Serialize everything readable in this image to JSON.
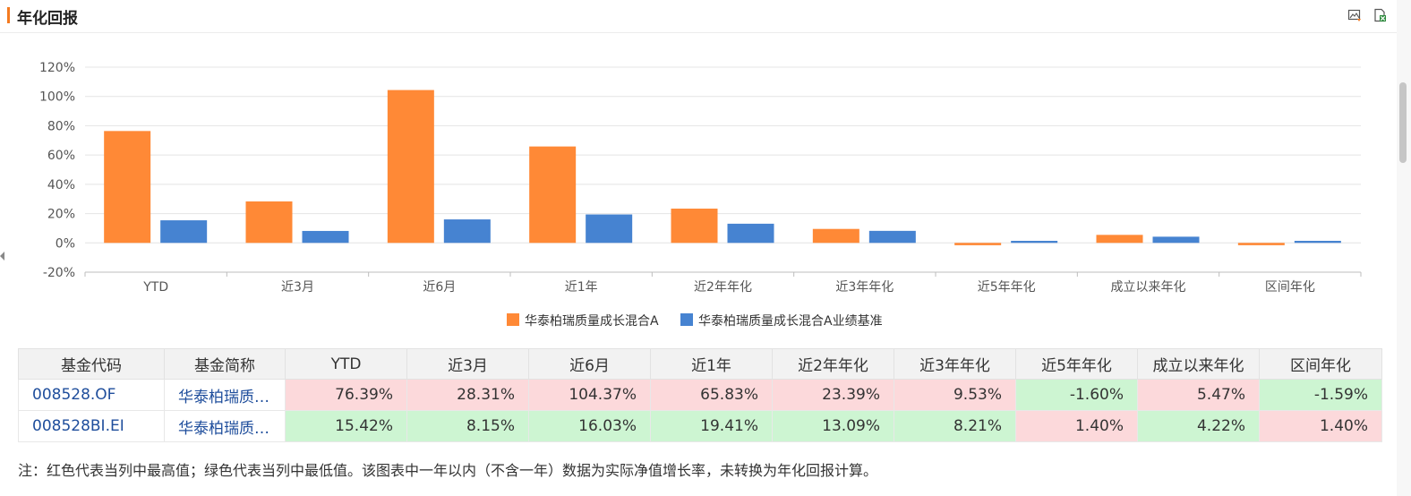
{
  "header": {
    "title": "年化回报",
    "icons": [
      "export-image-icon",
      "export-excel-icon"
    ]
  },
  "colors": {
    "fund": "#ff8936",
    "benchmark": "#4683d1",
    "high": "#fcd9db",
    "low": "#cdf5d2",
    "accent": "#f47a20"
  },
  "chart_data": {
    "type": "bar",
    "categories": [
      "YTD",
      "近3月",
      "近6月",
      "近1年",
      "近2年年化",
      "近3年年化",
      "近5年年化",
      "成立以来年化",
      "区间年化"
    ],
    "series": [
      {
        "name": "华泰柏瑞质量成长混合A",
        "values": [
          76.39,
          28.31,
          104.37,
          65.83,
          23.39,
          9.53,
          -1.6,
          5.47,
          -1.59
        ]
      },
      {
        "name": "华泰柏瑞质量成长混合A业绩基准",
        "values": [
          15.42,
          8.15,
          16.03,
          19.41,
          13.09,
          8.21,
          1.4,
          4.22,
          1.4
        ]
      }
    ],
    "ylim": [
      -20,
      120
    ],
    "yticks": [
      "120%",
      "100%",
      "80%",
      "60%",
      "40%",
      "20%",
      "0%",
      "-20%"
    ],
    "grid": true,
    "legend": "bottom-center"
  },
  "table": {
    "headers": [
      "基金代码",
      "基金简称",
      "YTD",
      "近3月",
      "近6月",
      "近1年",
      "近2年年化",
      "近3年年化",
      "近5年年化",
      "成立以来年化",
      "区间年化"
    ],
    "rows": [
      {
        "code": "008528.OF",
        "name": "华泰柏瑞质量成长混合A",
        "values": [
          "76.39%",
          "28.31%",
          "104.37%",
          "65.83%",
          "23.39%",
          "9.53%",
          "-1.60%",
          "5.47%",
          "-1.59%"
        ],
        "marks": [
          "high",
          "high",
          "high",
          "high",
          "high",
          "high",
          "low",
          "high",
          "low"
        ]
      },
      {
        "code": "008528BI.EI",
        "name": "华泰柏瑞质量成长混合A业绩基准",
        "values": [
          "15.42%",
          "8.15%",
          "16.03%",
          "19.41%",
          "13.09%",
          "8.21%",
          "1.40%",
          "4.22%",
          "1.40%"
        ],
        "marks": [
          "low",
          "low",
          "low",
          "low",
          "low",
          "low",
          "high",
          "low",
          "high"
        ]
      }
    ]
  },
  "note": "注：红色代表当列中最高值；绿色代表当列中最低值。该图表中一年以内（不含一年）数据为实际净值增长率，未转换为年化回报计算。"
}
